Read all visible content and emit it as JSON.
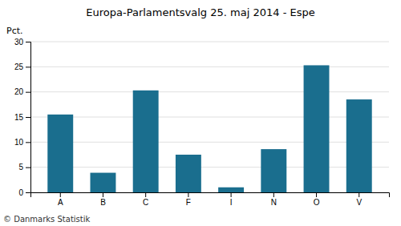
{
  "chart_data": {
    "type": "bar",
    "title": "Europa-Parlamentsvalg 25. maj 2014 - Espe",
    "categories": [
      "A",
      "B",
      "C",
      "F",
      "I",
      "N",
      "O",
      "V"
    ],
    "values": [
      15.5,
      3.9,
      20.3,
      7.5,
      1.0,
      8.6,
      25.3,
      18.5
    ],
    "color": "#1a6e8e",
    "ylabel": "Pct.",
    "ylim": [
      0,
      30
    ],
    "yticks": [
      0,
      5,
      10,
      15,
      20,
      25,
      30
    ],
    "grid": true,
    "annotations": [
      "© Danmarks Statistik"
    ]
  }
}
